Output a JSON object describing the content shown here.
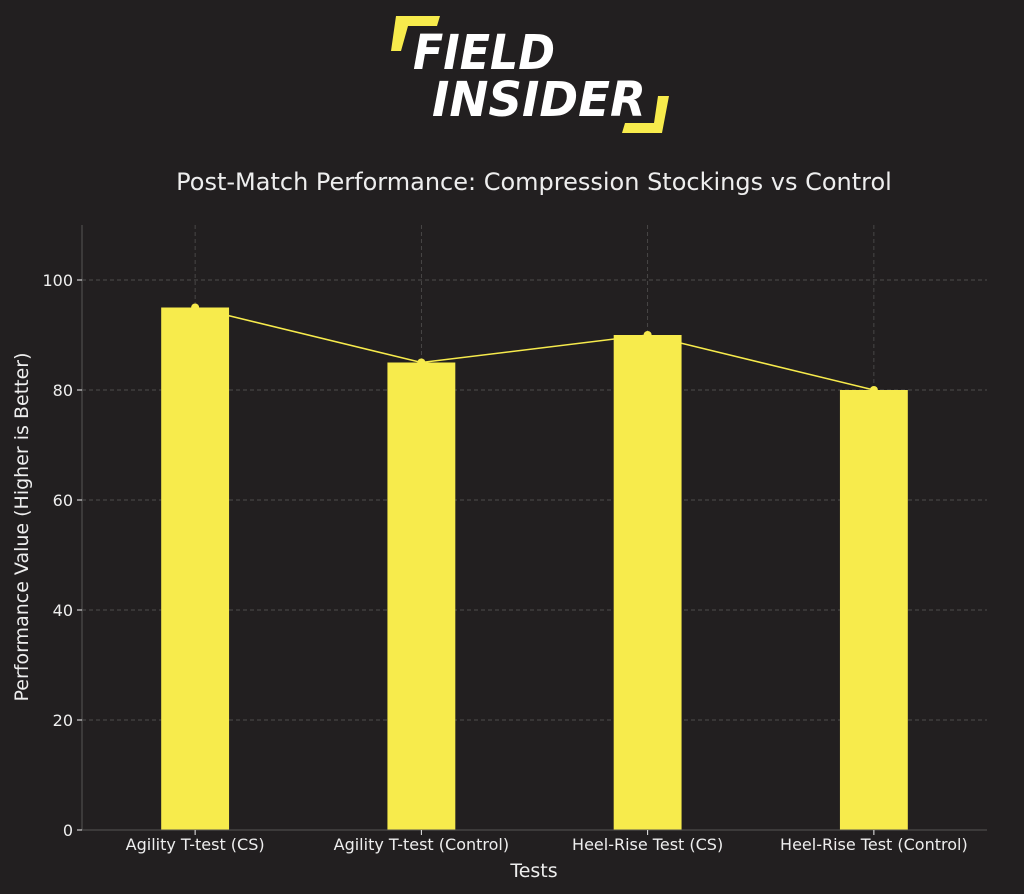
{
  "brand": {
    "line1": "FIELD",
    "line2": "INSIDER",
    "accent_color": "#f7eb4c"
  },
  "chart_data": {
    "type": "bar",
    "title": "Post-Match Performance: Compression Stockings vs Control",
    "xlabel": "Tests",
    "ylabel": "Performance Value (Higher is Better)",
    "categories": [
      "Agility T-test (CS)",
      "Agility T-test (Control)",
      "Heel-Rise Test (CS)",
      "Heel-Rise Test (Control)"
    ],
    "values": [
      95,
      85,
      90,
      80
    ],
    "overlay_line": true,
    "ylim": [
      0,
      110
    ],
    "yticks": [
      0,
      20,
      40,
      60,
      80,
      100
    ],
    "grid": true,
    "legend": "none",
    "colors": {
      "background": "#221f20",
      "bar": "#f7eb4c",
      "line": "#f7eb4c",
      "text": "#eeeeee",
      "grid": "#777777"
    }
  }
}
